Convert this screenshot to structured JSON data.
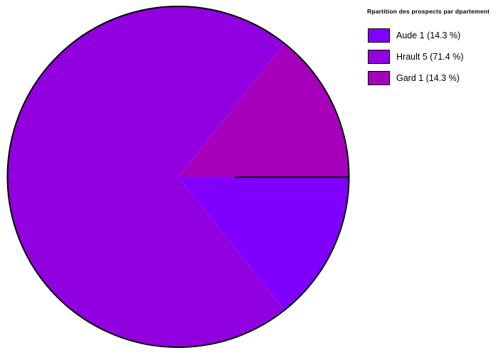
{
  "chart_data": {
    "type": "pie",
    "title": "Rpartition des prospects par dpartement",
    "slices": [
      {
        "label": "Aude",
        "value": 1,
        "percent": 14.3,
        "legend_label": "Aude 1 (14.3 %)",
        "color": "#7F00FF"
      },
      {
        "label": "Hrault",
        "value": 5,
        "percent": 71.4,
        "legend_label": "Hrault 5 (71.4 %)",
        "color": "#9100DE"
      },
      {
        "label": "Gard",
        "value": 1,
        "percent": 14.3,
        "legend_label": "Gard 1 (14.3 %)",
        "color": "#A600BC"
      }
    ],
    "layout": {
      "start_angle_deg": 0,
      "direction": "clockwise",
      "legend_position": "top-right",
      "outline_color": "#000000",
      "separator_color": "#000000",
      "background": "#FFFFFF"
    }
  }
}
